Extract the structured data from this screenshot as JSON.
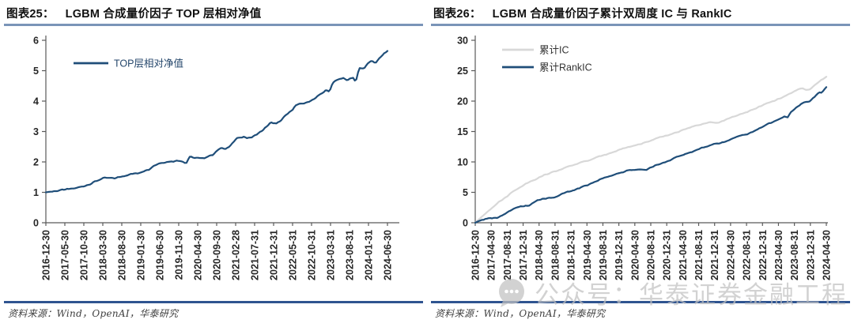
{
  "colors": {
    "navy": "#1F4E79",
    "light_gray": "#D8D8D8",
    "title_rule": "#7a94b8",
    "source_rule": "#2f5490",
    "axis": "#595959",
    "watermark": "#c2c2c2"
  },
  "figures": [
    {
      "label": "图表25：",
      "title": "LGBM 合成量价因子 TOP 层相对净值",
      "source": "资料来源：Wind，OpenAI，华泰研究"
    },
    {
      "label": "图表26：",
      "title": "LGBM 合成量价因子累计双周度 IC 与 RankIC",
      "source": "资料来源：Wind，OpenAI，华泰研究"
    }
  ],
  "watermark": {
    "icon": "chat-bubble-icon",
    "text": "公众号：华泰证券金融工程"
  },
  "chart_data": [
    {
      "type": "line",
      "title": "LGBM 合成量价因子 TOP 层相对净值",
      "ylim": [
        0,
        6
      ],
      "yticks": [
        0,
        1,
        2,
        3,
        4,
        5,
        6
      ],
      "grid": false,
      "legend_position": "top-left-inside",
      "x_tick_labels": [
        "2016-12-30",
        "2017-05-30",
        "2017-10-30",
        "2018-03-30",
        "2018-08-30",
        "2019-01-30",
        "2019-06-30",
        "2019-11-30",
        "2020-04-30",
        "2020-09-30",
        "2021-02-28",
        "2021-07-31",
        "2021-12-31",
        "2022-05-31",
        "2022-10-31",
        "2023-03-31",
        "2023-08-31",
        "2024-01-31",
        "2024-06-30"
      ],
      "series": [
        {
          "name": "TOP层相对净值",
          "color": "#1F4E79",
          "points_format": "[fraction_of_x_axis, net_value]",
          "points": [
            [
              0.0,
              1.0
            ],
            [
              0.02,
              1.03
            ],
            [
              0.05,
              1.08
            ],
            [
              0.08,
              1.12
            ],
            [
              0.11,
              1.2
            ],
            [
              0.13,
              1.28
            ],
            [
              0.15,
              1.38
            ],
            [
              0.165,
              1.46
            ],
            [
              0.18,
              1.47
            ],
            [
              0.2,
              1.46
            ],
            [
              0.215,
              1.5
            ],
            [
              0.23,
              1.55
            ],
            [
              0.25,
              1.6
            ],
            [
              0.27,
              1.63
            ],
            [
              0.285,
              1.7
            ],
            [
              0.3,
              1.75
            ],
            [
              0.315,
              1.87
            ],
            [
              0.33,
              1.95
            ],
            [
              0.35,
              2.0
            ],
            [
              0.37,
              2.02
            ],
            [
              0.39,
              2.05
            ],
            [
              0.4,
              2.03
            ],
            [
              0.41,
              1.94
            ],
            [
              0.42,
              2.16
            ],
            [
              0.44,
              2.13
            ],
            [
              0.455,
              2.11
            ],
            [
              0.47,
              2.16
            ],
            [
              0.49,
              2.25
            ],
            [
              0.51,
              2.45
            ],
            [
              0.525,
              2.42
            ],
            [
              0.54,
              2.55
            ],
            [
              0.56,
              2.78
            ],
            [
              0.58,
              2.81
            ],
            [
              0.6,
              2.8
            ],
            [
              0.62,
              2.92
            ],
            [
              0.63,
              3.0
            ],
            [
              0.65,
              3.2
            ],
            [
              0.66,
              3.3
            ],
            [
              0.675,
              3.25
            ],
            [
              0.69,
              3.38
            ],
            [
              0.7,
              3.5
            ],
            [
              0.72,
              3.7
            ],
            [
              0.73,
              3.85
            ],
            [
              0.75,
              3.92
            ],
            [
              0.765,
              3.95
            ],
            [
              0.78,
              4.05
            ],
            [
              0.79,
              4.1
            ],
            [
              0.8,
              4.2
            ],
            [
              0.82,
              4.35
            ],
            [
              0.83,
              4.3
            ],
            [
              0.84,
              4.62
            ],
            [
              0.855,
              4.7
            ],
            [
              0.87,
              4.75
            ],
            [
              0.885,
              4.7
            ],
            [
              0.9,
              4.78
            ],
            [
              0.907,
              4.62
            ],
            [
              0.917,
              5.1
            ],
            [
              0.93,
              5.05
            ],
            [
              0.945,
              5.28
            ],
            [
              0.955,
              5.33
            ],
            [
              0.965,
              5.25
            ],
            [
              0.98,
              5.45
            ],
            [
              0.99,
              5.55
            ],
            [
              1.0,
              5.65
            ]
          ]
        }
      ]
    },
    {
      "type": "line",
      "title": "LGBM 合成量价因子累计双周度 IC 与 RankIC",
      "ylim": [
        0,
        30
      ],
      "yticks": [
        0,
        5,
        10,
        15,
        20,
        25,
        30
      ],
      "grid": false,
      "legend_position": "top-left-inside",
      "x_tick_labels": [
        "2016-12-30",
        "2017-04-30",
        "2017-08-31",
        "2017-12-31",
        "2018-04-30",
        "2018-08-31",
        "2018-12-31",
        "2019-04-30",
        "2019-08-31",
        "2019-12-31",
        "2020-04-30",
        "2020-08-31",
        "2020-12-31",
        "2021-04-30",
        "2021-08-31",
        "2021-12-31",
        "2022-04-30",
        "2022-08-31",
        "2022-12-31",
        "2023-04-30",
        "2023-08-31",
        "2023-12-31",
        "2024-04-30"
      ],
      "series": [
        {
          "name": "累计IC",
          "color": "#D8D8D8",
          "points_format": "[fraction_of_x_axis, cumulative_IC]",
          "points": [
            [
              0.0,
              0.0
            ],
            [
              0.015,
              0.8
            ],
            [
              0.03,
              1.6
            ],
            [
              0.05,
              2.6
            ],
            [
              0.065,
              3.3
            ],
            [
              0.08,
              3.9
            ],
            [
              0.1,
              4.8
            ],
            [
              0.12,
              5.6
            ],
            [
              0.135,
              6.1
            ],
            [
              0.15,
              6.6
            ],
            [
              0.165,
              7.0
            ],
            [
              0.18,
              7.4
            ],
            [
              0.195,
              7.8
            ],
            [
              0.21,
              8.1
            ],
            [
              0.225,
              8.4
            ],
            [
              0.24,
              8.7
            ],
            [
              0.26,
              9.1
            ],
            [
              0.28,
              9.5
            ],
            [
              0.3,
              9.9
            ],
            [
              0.32,
              10.2
            ],
            [
              0.34,
              10.6
            ],
            [
              0.36,
              11.0
            ],
            [
              0.38,
              11.4
            ],
            [
              0.4,
              11.8
            ],
            [
              0.42,
              12.2
            ],
            [
              0.44,
              12.5
            ],
            [
              0.46,
              12.8
            ],
            [
              0.475,
              13.0
            ],
            [
              0.49,
              13.3
            ],
            [
              0.51,
              13.7
            ],
            [
              0.53,
              14.1
            ],
            [
              0.55,
              14.4
            ],
            [
              0.57,
              14.8
            ],
            [
              0.59,
              15.2
            ],
            [
              0.61,
              15.6
            ],
            [
              0.63,
              15.95
            ],
            [
              0.65,
              16.3
            ],
            [
              0.665,
              16.5
            ],
            [
              0.68,
              16.4
            ],
            [
              0.695,
              16.5
            ],
            [
              0.71,
              16.9
            ],
            [
              0.73,
              17.3
            ],
            [
              0.75,
              17.7
            ],
            [
              0.76,
              17.9
            ],
            [
              0.775,
              18.2
            ],
            [
              0.79,
              18.6
            ],
            [
              0.81,
              19.1
            ],
            [
              0.83,
              19.6
            ],
            [
              0.85,
              20.0
            ],
            [
              0.87,
              20.5
            ],
            [
              0.88,
              20.8
            ],
            [
              0.89,
              21.0
            ],
            [
              0.9,
              21.3
            ],
            [
              0.91,
              21.6
            ],
            [
              0.92,
              22.0
            ],
            [
              0.93,
              22.2
            ],
            [
              0.94,
              21.9
            ],
            [
              0.95,
              21.8
            ],
            [
              0.96,
              22.3
            ],
            [
              0.97,
              22.7
            ],
            [
              0.98,
              23.2
            ],
            [
              0.985,
              23.4
            ],
            [
              1.0,
              24.0
            ]
          ]
        },
        {
          "name": "累计RankIC",
          "color": "#1F4E79",
          "points_format": "[fraction_of_x_axis, cumulative_RankIC]",
          "points": [
            [
              0.0,
              0.0
            ],
            [
              0.015,
              0.4
            ],
            [
              0.03,
              0.7
            ],
            [
              0.05,
              0.8
            ],
            [
              0.065,
              0.85
            ],
            [
              0.08,
              1.4
            ],
            [
              0.1,
              2.0
            ],
            [
              0.12,
              2.5
            ],
            [
              0.135,
              2.7
            ],
            [
              0.15,
              2.8
            ],
            [
              0.165,
              3.3
            ],
            [
              0.18,
              3.8
            ],
            [
              0.195,
              3.95
            ],
            [
              0.21,
              4.1
            ],
            [
              0.225,
              4.15
            ],
            [
              0.24,
              4.6
            ],
            [
              0.26,
              5.0
            ],
            [
              0.28,
              5.3
            ],
            [
              0.3,
              5.8
            ],
            [
              0.32,
              6.2
            ],
            [
              0.34,
              6.7
            ],
            [
              0.36,
              7.2
            ],
            [
              0.38,
              7.7
            ],
            [
              0.4,
              8.0
            ],
            [
              0.42,
              8.3
            ],
            [
              0.44,
              8.6
            ],
            [
              0.46,
              8.75
            ],
            [
              0.475,
              8.7
            ],
            [
              0.49,
              8.8
            ],
            [
              0.51,
              9.4
            ],
            [
              0.53,
              9.8
            ],
            [
              0.55,
              10.2
            ],
            [
              0.57,
              10.7
            ],
            [
              0.59,
              11.1
            ],
            [
              0.61,
              11.5
            ],
            [
              0.63,
              12.0
            ],
            [
              0.65,
              12.4
            ],
            [
              0.665,
              12.7
            ],
            [
              0.68,
              12.9
            ],
            [
              0.695,
              13.0
            ],
            [
              0.71,
              13.3
            ],
            [
              0.73,
              13.8
            ],
            [
              0.75,
              14.3
            ],
            [
              0.76,
              14.5
            ],
            [
              0.775,
              14.55
            ],
            [
              0.79,
              14.9
            ],
            [
              0.81,
              15.5
            ],
            [
              0.83,
              16.1
            ],
            [
              0.85,
              16.6
            ],
            [
              0.87,
              17.2
            ],
            [
              0.88,
              17.5
            ],
            [
              0.89,
              17.4
            ],
            [
              0.9,
              18.3
            ],
            [
              0.91,
              18.6
            ],
            [
              0.92,
              19.2
            ],
            [
              0.93,
              19.5
            ],
            [
              0.94,
              19.9
            ],
            [
              0.95,
              19.85
            ],
            [
              0.96,
              20.4
            ],
            [
              0.97,
              20.9
            ],
            [
              0.98,
              21.4
            ],
            [
              0.985,
              21.3
            ],
            [
              1.0,
              22.3
            ]
          ]
        }
      ]
    }
  ]
}
